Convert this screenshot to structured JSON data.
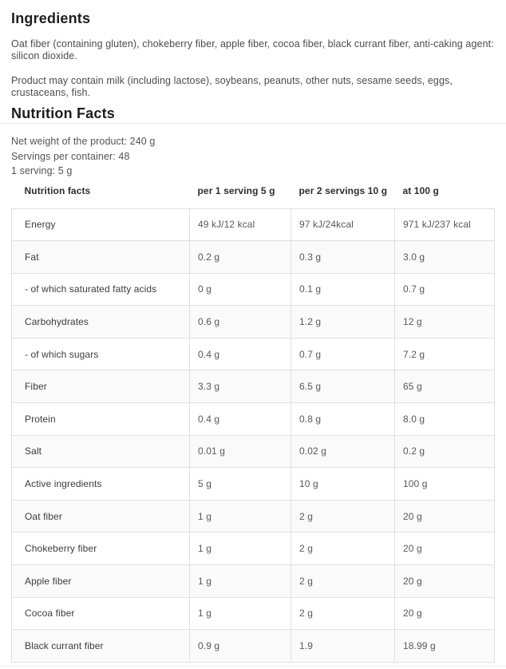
{
  "ingredients": {
    "title": "Ingredients",
    "paragraphs": [
      "Oat fiber (containing gluten), chokeberry fiber, apple fiber, cocoa fiber, black currant fiber, anti-caking agent: silicon dioxide.",
      "Product may contain milk (including lactose), soybeans, peanuts, other nuts, sesame seeds, eggs, crustaceans, fish."
    ]
  },
  "nutrition": {
    "title": "Nutrition Facts",
    "meta": {
      "net_weight": "Net weight of the product: 240 g",
      "servings_per_container": "Servings per container: 48",
      "serving_size": "1 serving: 5 g"
    },
    "table": {
      "headers": [
        "Nutrition facts",
        "per 1 serving 5 g",
        "per 2 servings 10 g",
        "at 100 g"
      ],
      "rows": [
        {
          "label": "Energy",
          "per_serving": "49 kJ/12 kcal",
          "per_two_servings": "97 kJ/24kcal",
          "per_100g": "971 kJ/237 kcal"
        },
        {
          "label": "Fat",
          "per_serving": "0.2 g",
          "per_two_servings": "0.3 g",
          "per_100g": "3.0 g"
        },
        {
          "label": "- of which saturated fatty acids",
          "per_serving": "0 g",
          "per_two_servings": "0.1 g",
          "per_100g": "0.7 g"
        },
        {
          "label": "Carbohydrates",
          "per_serving": "0.6 g",
          "per_two_servings": "1.2 g",
          "per_100g": "12 g"
        },
        {
          "label": "- of which sugars",
          "per_serving": "0.4 g",
          "per_two_servings": "0.7 g",
          "per_100g": "7.2 g"
        },
        {
          "label": "Fiber",
          "per_serving": "3.3 g",
          "per_two_servings": "6.5 g",
          "per_100g": "65 g"
        },
        {
          "label": "Protein",
          "per_serving": "0.4 g",
          "per_two_servings": "0.8 g",
          "per_100g": "8.0 g"
        },
        {
          "label": "Salt",
          "per_serving": "0.01 g",
          "per_two_servings": "0.02 g",
          "per_100g": "0.2 g"
        },
        {
          "label": "Active ingredients",
          "per_serving": "5 g",
          "per_two_servings": "10 g",
          "per_100g": "100 g"
        },
        {
          "label": "Oat fiber",
          "per_serving": "1 g",
          "per_two_servings": "2 g",
          "per_100g": "20 g"
        },
        {
          "label": "Chokeberry fiber",
          "per_serving": "1 g",
          "per_two_servings": "2 g",
          "per_100g": "20 g"
        },
        {
          "label": "Apple fiber",
          "per_serving": "1 g",
          "per_two_servings": "2 g",
          "per_100g": "20 g"
        },
        {
          "label": "Cocoa fiber",
          "per_serving": "1 g",
          "per_two_servings": "2 g",
          "per_100g": "20 g"
        },
        {
          "label": "Black currant fiber",
          "per_serving": "0.9 g",
          "per_two_servings": "1.9",
          "per_100g": "18.99 g"
        }
      ]
    }
  },
  "colors": {
    "heading_text": "#1d1d1d",
    "body_text": "#4b4b4b",
    "table_border": "#e0e0e0",
    "row_alt_background": "#fafafa",
    "panel_divider": "#ececec"
  }
}
